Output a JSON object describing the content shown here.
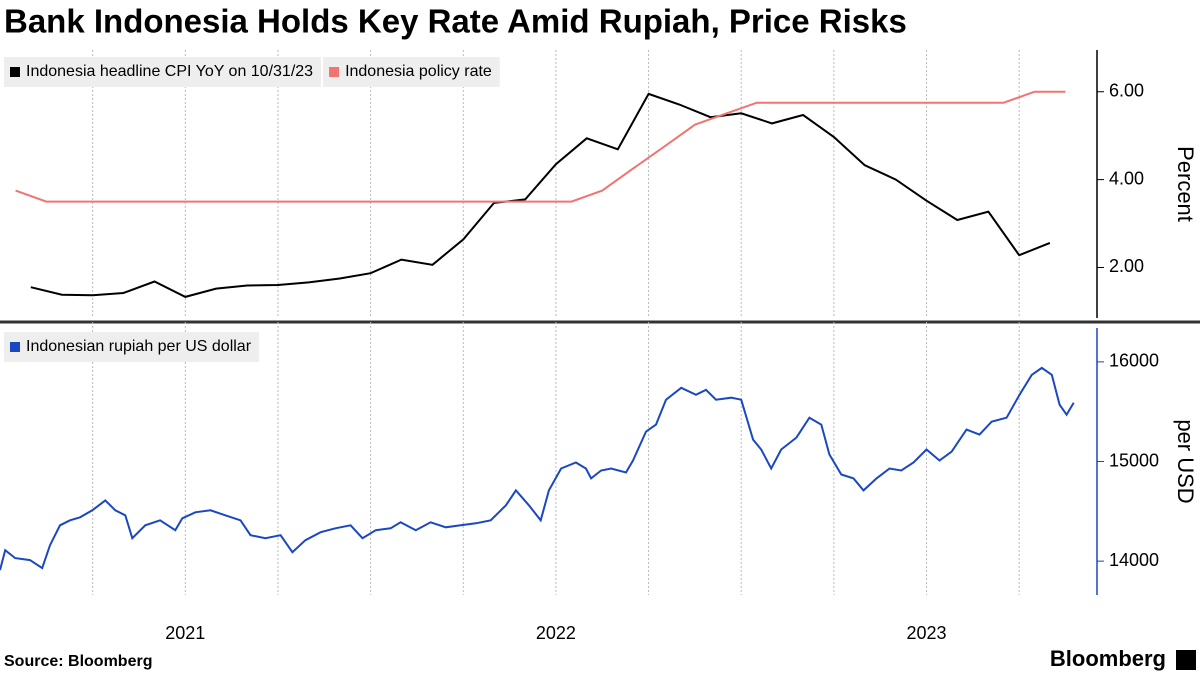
{
  "source": "Source: Bloomberg",
  "brand": "Bloomberg",
  "chart_data": [
    {
      "type": "line",
      "title": "Bank Indonesia Holds Key Rate Amid Rupiah, Price Risks",
      "ylabel": "Percent",
      "xlim": [
        2021,
        2023.96
      ],
      "ylim": [
        0.85,
        6.95
      ],
      "yticks": [
        {
          "value": 2,
          "label": "2.00"
        },
        {
          "value": 4,
          "label": "4.00"
        },
        {
          "value": 6,
          "label": "6.00"
        }
      ],
      "grid": true,
      "xgrid": [
        2021.25,
        2021.5,
        2021.75,
        2022,
        2022.25,
        2022.5,
        2022.75,
        2023,
        2023.25,
        2023.5,
        2023.75
      ],
      "axis_color": "#000000",
      "series": [
        {
          "name": "Indonesia headline CPI YoY on 10/31/23",
          "color": "#000000",
          "x": [
            2021.083,
            2021.167,
            2021.25,
            2021.333,
            2021.417,
            2021.5,
            2021.583,
            2021.667,
            2021.75,
            2021.833,
            2021.917,
            2022.0,
            2022.083,
            2022.167,
            2022.25,
            2022.333,
            2022.417,
            2022.5,
            2022.583,
            2022.667,
            2022.75,
            2022.833,
            2022.917,
            2023.0,
            2023.083,
            2023.167,
            2023.25,
            2023.333,
            2023.417,
            2023.5,
            2023.583,
            2023.667,
            2023.75,
            2023.833
          ],
          "values": [
            1.55,
            1.38,
            1.37,
            1.42,
            1.68,
            1.33,
            1.52,
            1.59,
            1.6,
            1.66,
            1.75,
            1.87,
            2.18,
            2.06,
            2.64,
            3.47,
            3.55,
            4.35,
            4.94,
            4.69,
            5.95,
            5.71,
            5.42,
            5.51,
            5.28,
            5.47,
            4.97,
            4.33,
            4.0,
            3.52,
            3.08,
            3.27,
            2.28,
            2.56
          ]
        },
        {
          "name": "Indonesia policy rate",
          "color": "#f07470",
          "x": [
            2021.042,
            2021.125,
            2021.208,
            2021.292,
            2021.375,
            2021.458,
            2021.542,
            2021.625,
            2021.708,
            2021.792,
            2021.875,
            2021.958,
            2022.042,
            2022.125,
            2022.208,
            2022.292,
            2022.375,
            2022.458,
            2022.542,
            2022.625,
            2022.708,
            2022.792,
            2022.875,
            2022.958,
            2023.042,
            2023.125,
            2023.208,
            2023.292,
            2023.375,
            2023.458,
            2023.542,
            2023.625,
            2023.708,
            2023.792,
            2023.875
          ],
          "values": [
            3.75,
            3.5,
            3.5,
            3.5,
            3.5,
            3.5,
            3.5,
            3.5,
            3.5,
            3.5,
            3.5,
            3.5,
            3.5,
            3.5,
            3.5,
            3.5,
            3.5,
            3.5,
            3.5,
            3.75,
            4.25,
            4.75,
            5.25,
            5.5,
            5.75,
            5.75,
            5.75,
            5.75,
            5.75,
            5.75,
            5.75,
            5.75,
            5.75,
            6.0,
            6.0
          ]
        }
      ]
    },
    {
      "type": "line",
      "ylabel": "per USD",
      "xlim": [
        2021,
        2023.96
      ],
      "ylim": [
        13660,
        16340
      ],
      "yticks": [
        14000,
        15000,
        16000
      ],
      "grid": true,
      "xgrid": [
        2021.25,
        2021.5,
        2021.75,
        2022,
        2022.25,
        2022.5,
        2022.75,
        2023,
        2023.25,
        2023.5,
        2023.75
      ],
      "xticks": [
        {
          "value": 2021.5,
          "label": "2021"
        },
        {
          "value": 2022.5,
          "label": "2022"
        },
        {
          "value": 2023.5,
          "label": "2023"
        }
      ],
      "axis_color": "#1a47c2",
      "series": [
        {
          "name": "Indonesian rupiah per US dollar",
          "color": "#1a47c2",
          "x": [
            2021.0,
            2021.014,
            2021.041,
            2021.081,
            2021.114,
            2021.135,
            2021.162,
            2021.189,
            2021.216,
            2021.249,
            2021.284,
            2021.311,
            2021.338,
            2021.357,
            2021.392,
            2021.432,
            2021.473,
            2021.492,
            2021.527,
            2021.568,
            2021.608,
            2021.649,
            2021.676,
            2021.716,
            2021.757,
            2021.789,
            2021.824,
            2021.865,
            2021.905,
            2021.946,
            2021.978,
            2022.014,
            2022.054,
            2022.081,
            2022.122,
            2022.162,
            2022.203,
            2022.243,
            2022.284,
            2022.324,
            2022.365,
            2022.392,
            2022.427,
            2022.459,
            2022.481,
            2022.514,
            2022.554,
            2022.581,
            2022.595,
            2022.622,
            2022.649,
            2022.689,
            2022.708,
            2022.743,
            2022.77,
            2022.797,
            2022.838,
            2022.878,
            2022.905,
            2022.932,
            2022.973,
            2023.0,
            2023.032,
            2023.054,
            2023.081,
            2023.108,
            2023.149,
            2023.184,
            2023.216,
            2023.238,
            2023.27,
            2023.303,
            2023.33,
            2023.365,
            2023.4,
            2023.432,
            2023.465,
            2023.5,
            2023.535,
            2023.568,
            2023.608,
            2023.643,
            2023.676,
            2023.716,
            2023.751,
            2023.784,
            2023.811,
            2023.838,
            2023.859,
            2023.878,
            2023.897
          ],
          "values": [
            13910,
            14110,
            14030,
            14010,
            13930,
            14160,
            14360,
            14410,
            14440,
            14510,
            14610,
            14510,
            14460,
            14230,
            14360,
            14410,
            14310,
            14430,
            14490,
            14510,
            14460,
            14410,
            14260,
            14230,
            14260,
            14090,
            14210,
            14290,
            14330,
            14360,
            14230,
            14310,
            14330,
            14390,
            14310,
            14390,
            14340,
            14360,
            14380,
            14410,
            14560,
            14710,
            14560,
            14410,
            14710,
            14930,
            14990,
            14930,
            14830,
            14910,
            14930,
            14890,
            15010,
            15300,
            15370,
            15620,
            15740,
            15670,
            15720,
            15620,
            15640,
            15620,
            15220,
            15120,
            14930,
            15120,
            15240,
            15440,
            15370,
            15070,
            14870,
            14830,
            14710,
            14830,
            14930,
            14910,
            14990,
            15120,
            15010,
            15100,
            15320,
            15270,
            15400,
            15440,
            15670,
            15870,
            15940,
            15870,
            15570,
            15470,
            15590
          ]
        }
      ]
    }
  ]
}
